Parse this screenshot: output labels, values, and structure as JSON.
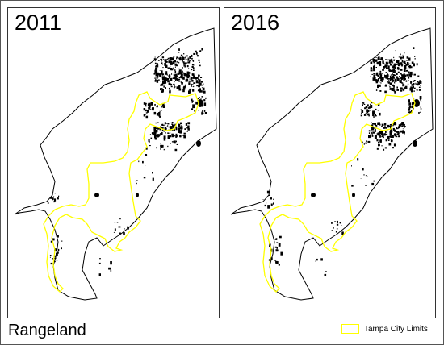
{
  "map": {
    "category": "Rangeland",
    "panels": [
      {
        "year": "2011"
      },
      {
        "year": "2016"
      }
    ],
    "legend": {
      "label": "Tampa City Limits",
      "color": "#ffff00"
    },
    "land_cover_color": "#000000",
    "background_color": "#ffffff"
  }
}
